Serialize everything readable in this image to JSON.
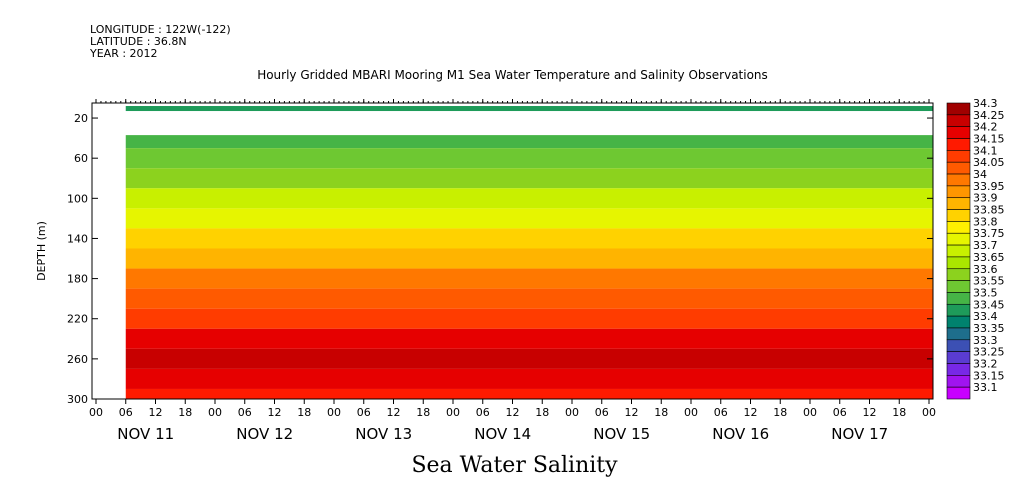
{
  "meta": {
    "longitude": "LONGITUDE : 122W(-122)",
    "latitude": "LATITUDE : 36.8N",
    "year": "YEAR : 2012"
  },
  "chart_data": {
    "type": "heatmap",
    "title": "Hourly Gridded MBARI Mooring M1 Sea Water Temperature and Salinity Observations",
    "xlabel": "Sea Water Salinity",
    "ylabel": "DEPTH (m)",
    "y_ticks": [
      20,
      60,
      100,
      140,
      180,
      220,
      260,
      300
    ],
    "ylim": [
      300,
      5
    ],
    "x_hour_ticks": [
      "00",
      "06",
      "12",
      "18",
      "00",
      "06",
      "12",
      "18",
      "00",
      "06",
      "12",
      "18",
      "00",
      "06",
      "12",
      "18",
      "00",
      "06",
      "12",
      "18",
      "00",
      "06",
      "12",
      "18",
      "00",
      "06",
      "12",
      "18",
      "00"
    ],
    "x_day_labels": [
      "NOV 11",
      "NOV 12",
      "NOV 13",
      "NOV 14",
      "NOV 15",
      "NOV 16",
      "NOV 17"
    ],
    "colorbar_levels": [
      "34.3",
      "34.25",
      "34.2",
      "34.15",
      "34.1",
      "34.05",
      "34",
      "33.95",
      "33.9",
      "33.85",
      "33.8",
      "33.75",
      "33.7",
      "33.65",
      "33.6",
      "33.55",
      "33.5",
      "33.45",
      "33.4",
      "33.35",
      "33.3",
      "33.25",
      "33.2",
      "33.15",
      "33.1"
    ],
    "colorbar_colors": [
      "#a00000",
      "#c80000",
      "#e60000",
      "#ff1a00",
      "#ff3c00",
      "#ff5a00",
      "#ff7800",
      "#ff9600",
      "#ffb400",
      "#ffd200",
      "#fff000",
      "#e6f500",
      "#c8f000",
      "#aae600",
      "#8cd21e",
      "#6ec832",
      "#46b446",
      "#1e9b5a",
      "#00826e",
      "#1e6e8c",
      "#3c50b4",
      "#5a3cd2",
      "#7828e6",
      "#a014f0",
      "#c800ff"
    ],
    "depth_rows": [
      {
        "depth": 10,
        "salinity": 33.47
      },
      {
        "depth": 40,
        "salinity": 33.5
      },
      {
        "depth": 60,
        "salinity": 33.55
      },
      {
        "depth": 80,
        "salinity": 33.62
      },
      {
        "depth": 100,
        "salinity": 33.7
      },
      {
        "depth": 120,
        "salinity": 33.78
      },
      {
        "depth": 140,
        "salinity": 33.86
      },
      {
        "depth": 160,
        "salinity": 33.94
      },
      {
        "depth": 180,
        "salinity": 34.0
      },
      {
        "depth": 200,
        "salinity": 34.06
      },
      {
        "depth": 220,
        "salinity": 34.14
      },
      {
        "depth": 240,
        "salinity": 34.2
      },
      {
        "depth": 260,
        "salinity": 34.27
      },
      {
        "depth": 280,
        "salinity": 34.22
      },
      {
        "depth": 300,
        "salinity": 34.18
      }
    ]
  }
}
